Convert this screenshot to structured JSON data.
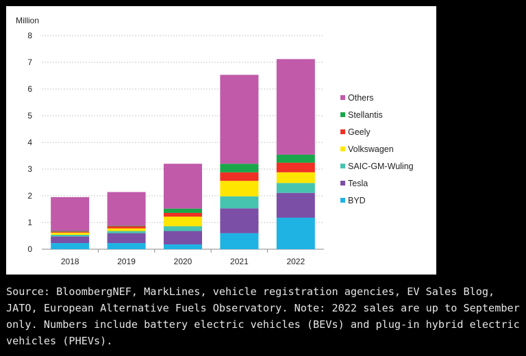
{
  "chart_data": {
    "type": "bar",
    "stacked": true,
    "ylabel": "Million",
    "ylim": [
      0,
      8
    ],
    "yticks": [
      "0",
      "1",
      "2",
      "3",
      "4",
      "5",
      "6",
      "7",
      "8"
    ],
    "categories": [
      "2018",
      "2019",
      "2020",
      "2021",
      "2022"
    ],
    "grid": true,
    "legend_position": "right",
    "series": [
      {
        "name": "BYD",
        "color": "#1fb3e3",
        "values": [
          0.23,
          0.23,
          0.18,
          0.6,
          1.18
        ]
      },
      {
        "name": "Tesla",
        "color": "#7b4fa6",
        "values": [
          0.25,
          0.37,
          0.5,
          0.93,
          0.93
        ]
      },
      {
        "name": "SAIC-GM-Wuling",
        "color": "#47c4b0",
        "values": [
          0.06,
          0.08,
          0.18,
          0.45,
          0.37
        ]
      },
      {
        "name": "Volkswagen",
        "color": "#ffe600",
        "values": [
          0.08,
          0.1,
          0.36,
          0.58,
          0.4
        ]
      },
      {
        "name": "Geely",
        "color": "#f03024",
        "values": [
          0.04,
          0.08,
          0.14,
          0.32,
          0.36
        ]
      },
      {
        "name": "Stellantis",
        "color": "#1aa64a",
        "values": [
          0.02,
          0.02,
          0.16,
          0.32,
          0.3
        ]
      },
      {
        "name": "Others",
        "color": "#c05aa9",
        "values": [
          1.27,
          1.26,
          1.68,
          3.33,
          3.58
        ]
      }
    ]
  },
  "source_note": "Source: BloombergNEF, MarkLines, vehicle registration agencies, EV Sales Blog, JATO, European Alternative Fuels Observatory. Note: 2022 sales are up to September only. Numbers include battery electric vehicles (BEVs) and plug-in hybrid electric vehicles (PHEVs)."
}
